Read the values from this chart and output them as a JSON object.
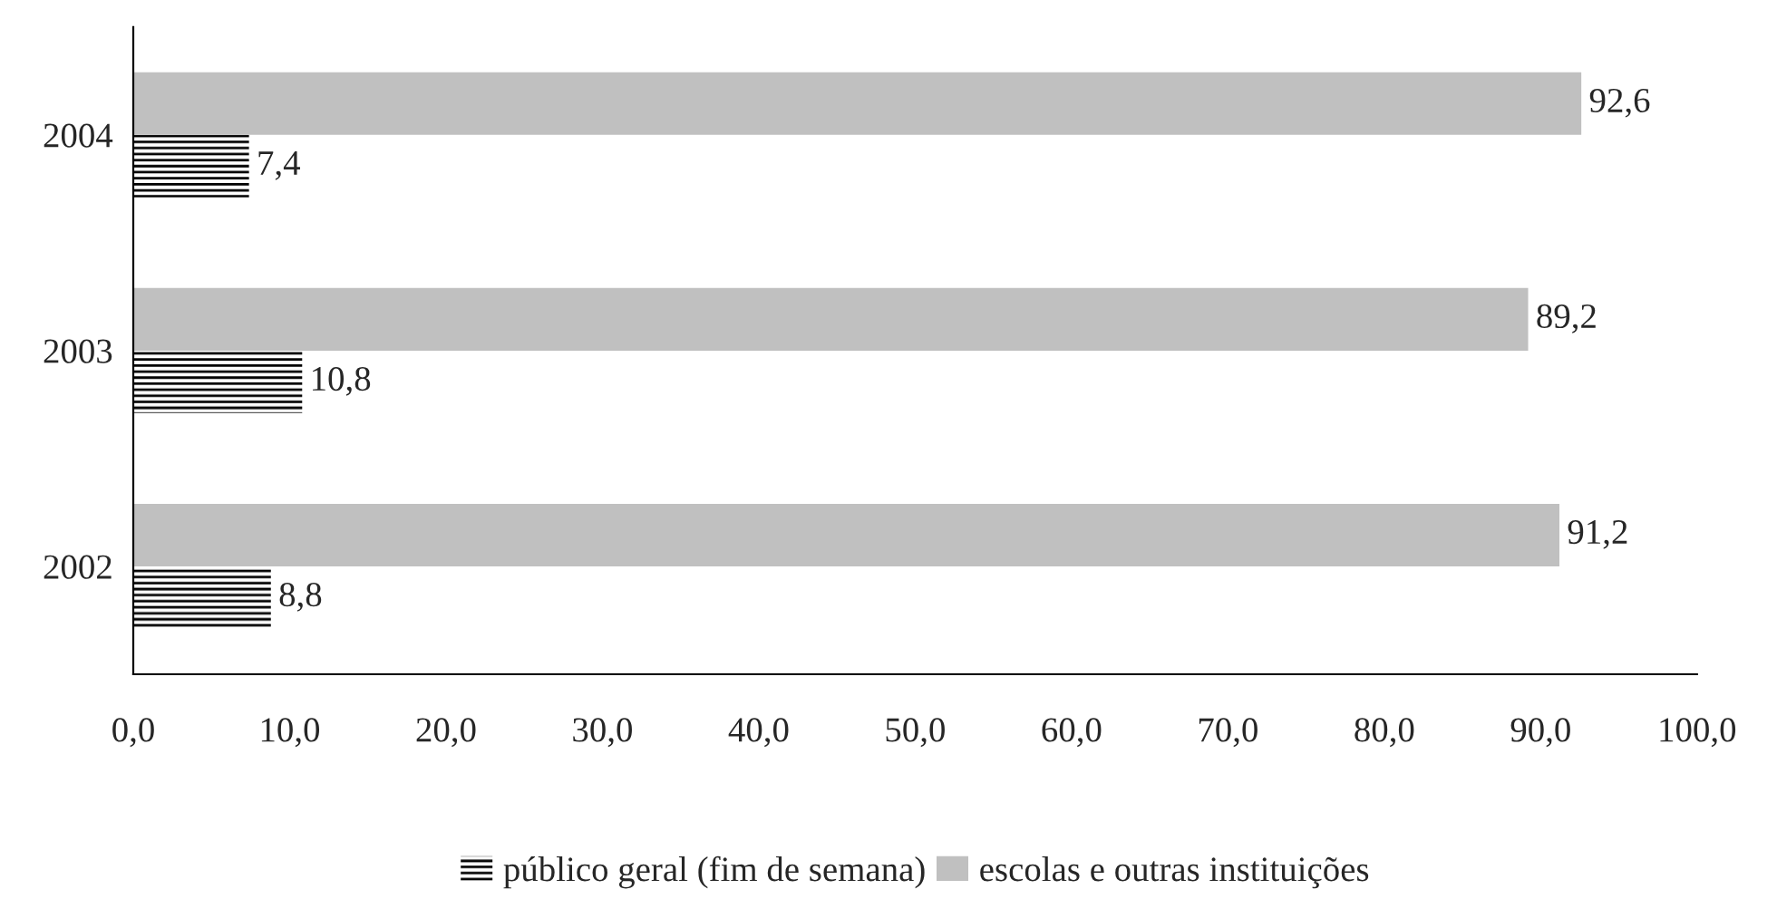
{
  "chart_data": {
    "type": "bar",
    "orientation": "horizontal",
    "categories": [
      "2004",
      "2003",
      "2002"
    ],
    "series": [
      {
        "name": "público geral (fim de semana)",
        "color": "#000000",
        "values": [
          7.4,
          10.8,
          8.8
        ],
        "value_labels": [
          "7,4",
          "10,8",
          "8,8"
        ]
      },
      {
        "name": "escolas e outras instituições",
        "color": "#c0c0c0",
        "values": [
          92.6,
          89.2,
          91.2
        ],
        "value_labels": [
          "92,6",
          "89,2",
          "91,2"
        ]
      }
    ],
    "xlim": [
      0,
      100
    ],
    "xticks": [
      {
        "value": 0,
        "label": "0,0"
      },
      {
        "value": 10,
        "label": "10,0"
      },
      {
        "value": 20,
        "label": "20,0"
      },
      {
        "value": 30,
        "label": "30,0"
      },
      {
        "value": 40,
        "label": "40,0"
      },
      {
        "value": 50,
        "label": "50,0"
      },
      {
        "value": 60,
        "label": "60,0"
      },
      {
        "value": 70,
        "label": "70,0"
      },
      {
        "value": 80,
        "label": "80,0"
      },
      {
        "value": 90,
        "label": "90,0"
      },
      {
        "value": 100,
        "label": "100,0"
      }
    ],
    "grid": false,
    "legend": "bottom"
  }
}
